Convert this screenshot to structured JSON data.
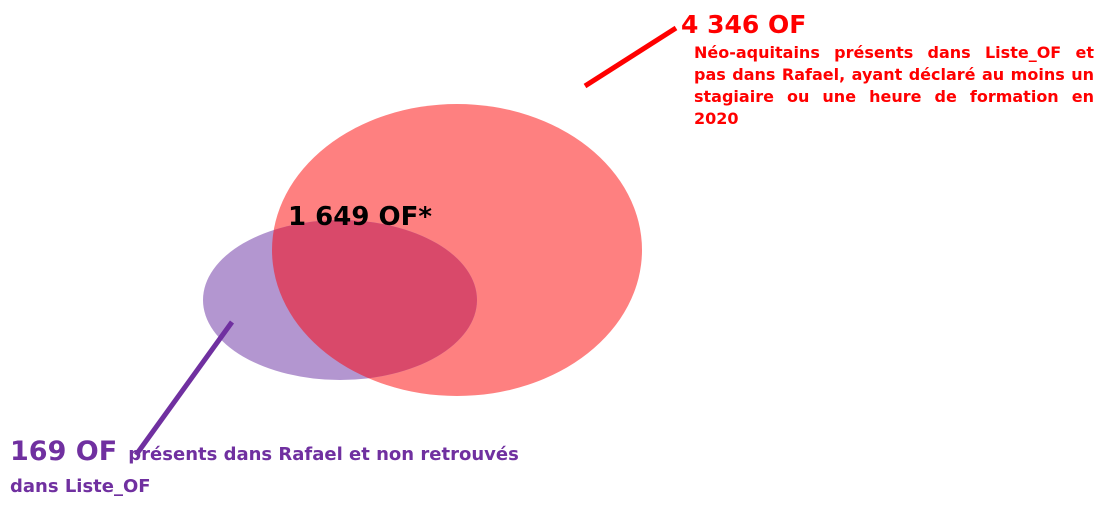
{
  "left": {
    "count": "169 OF",
    "description": "présents dans Rafael et non retrouvés dans Liste_OF"
  },
  "intersection": {
    "label": "1 649 OF*"
  },
  "right": {
    "count": "4 346 OF",
    "description": "Néo-aquitains présents dans Liste_OF et pas dans Rafael, ayant déclaré au moins un stagiaire ou une heure de formation en 2020"
  }
}
